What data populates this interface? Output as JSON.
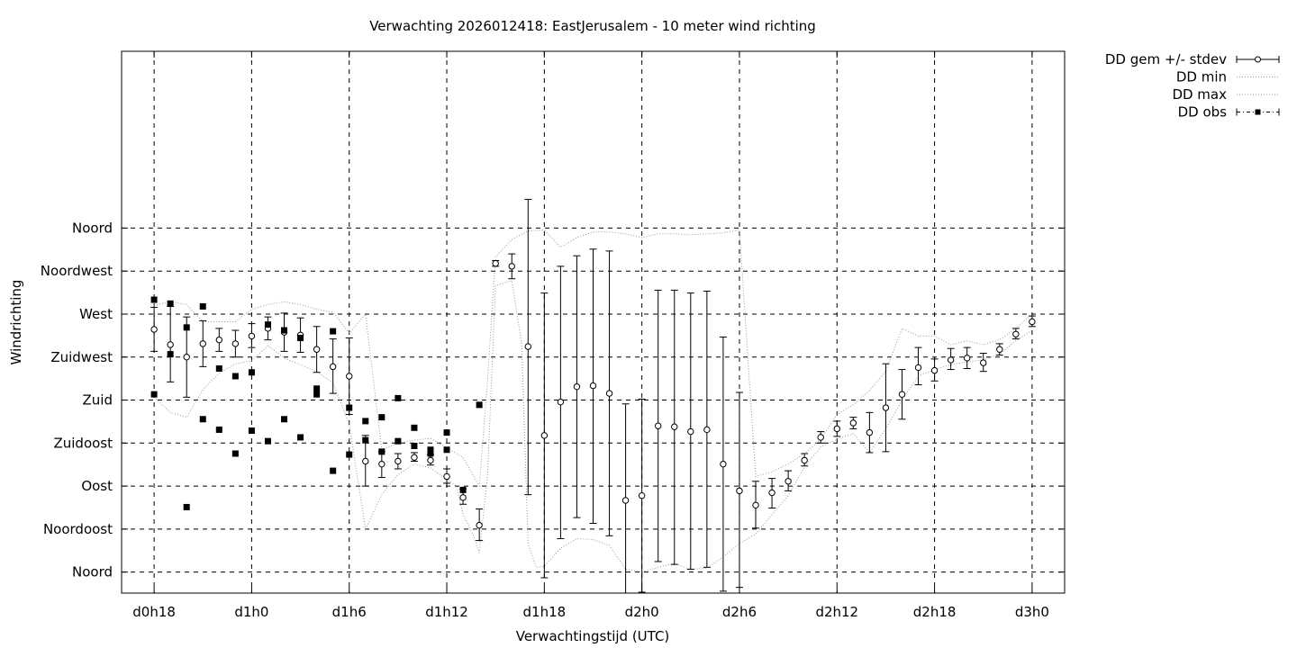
{
  "chart_data": {
    "type": "scatter",
    "title": "Verwachting 2026012418: EastJerusalem - 10 meter wind richting",
    "xlabel": "Verwachtingstijd (UTC)",
    "ylabel": "Windrichting",
    "xlim": [
      -2,
      56
    ],
    "ylim": [
      -22,
      545
    ],
    "x_unit": "hours since d0h18",
    "grid": true,
    "legend_position": "outside-top-right",
    "x_ticks": [
      {
        "x": 0,
        "label": "d0h18"
      },
      {
        "x": 6,
        "label": "d1h0"
      },
      {
        "x": 12,
        "label": "d1h6"
      },
      {
        "x": 18,
        "label": "d1h12"
      },
      {
        "x": 24,
        "label": "d1h18"
      },
      {
        "x": 30,
        "label": "d2h0"
      },
      {
        "x": 36,
        "label": "d2h6"
      },
      {
        "x": 42,
        "label": "d2h12"
      },
      {
        "x": 48,
        "label": "d2h18"
      },
      {
        "x": 54,
        "label": "d3h0"
      }
    ],
    "y_ticks": [
      {
        "y": 0,
        "label": "Noord"
      },
      {
        "y": 45,
        "label": "Noordoost"
      },
      {
        "y": 90,
        "label": "Oost"
      },
      {
        "y": 135,
        "label": "Zuidoost"
      },
      {
        "y": 180,
        "label": "Zuid"
      },
      {
        "y": 225,
        "label": "Zuidwest"
      },
      {
        "y": 270,
        "label": "West"
      },
      {
        "y": 315,
        "label": "Noordwest"
      },
      {
        "y": 360,
        "label": "Noord"
      }
    ],
    "legend": [
      {
        "label": "DD gem +/- stdev",
        "style": "errorbar"
      },
      {
        "label": "DD min",
        "style": "dotted"
      },
      {
        "label": "DD max",
        "style": "dotted"
      },
      {
        "label": "DD obs",
        "style": "square"
      }
    ],
    "series": [
      {
        "name": "DD gem +/- stdev",
        "points": [
          {
            "x": 0,
            "y": 254,
            "ylow": 231,
            "yhigh": 277
          },
          {
            "x": 1,
            "y": 238,
            "ylow": 199,
            "yhigh": 278
          },
          {
            "x": 2,
            "y": 225,
            "ylow": 183,
            "yhigh": 267
          },
          {
            "x": 3,
            "y": 239,
            "ylow": 215,
            "yhigh": 263
          },
          {
            "x": 4,
            "y": 243,
            "ylow": 231,
            "yhigh": 255
          },
          {
            "x": 5,
            "y": 239,
            "ylow": 225,
            "yhigh": 253
          },
          {
            "x": 6,
            "y": 247,
            "ylow": 235,
            "yhigh": 260
          },
          {
            "x": 7,
            "y": 255,
            "ylow": 243,
            "yhigh": 267
          },
          {
            "x": 8,
            "y": 251,
            "ylow": 231,
            "yhigh": 271
          },
          {
            "x": 9,
            "y": 248,
            "ylow": 230,
            "yhigh": 266
          },
          {
            "x": 10,
            "y": 233,
            "ylow": 209,
            "yhigh": 257
          },
          {
            "x": 11,
            "y": 215,
            "ylow": 187,
            "yhigh": 244
          },
          {
            "x": 12,
            "y": 205,
            "ylow": 165,
            "yhigh": 245
          },
          {
            "x": 13,
            "y": 116,
            "ylow": 90,
            "yhigh": 143
          },
          {
            "x": 14,
            "y": 113,
            "ylow": 99,
            "yhigh": 126
          },
          {
            "x": 15,
            "y": 116,
            "ylow": 108,
            "yhigh": 124
          },
          {
            "x": 16,
            "y": 120,
            "ylow": 116,
            "yhigh": 125
          },
          {
            "x": 17,
            "y": 117,
            "ylow": 112,
            "yhigh": 123
          },
          {
            "x": 18,
            "y": 100,
            "ylow": 93,
            "yhigh": 108
          },
          {
            "x": 19,
            "y": 78,
            "ylow": 71,
            "yhigh": 87
          },
          {
            "x": 20,
            "y": 49,
            "ylow": 33,
            "yhigh": 66
          },
          {
            "x": 21,
            "y": 323,
            "ylow": 320,
            "yhigh": 326
          },
          {
            "x": 22,
            "y": 320,
            "ylow": 307,
            "yhigh": 333
          },
          {
            "x": 23,
            "y": 236,
            "ylow": 81,
            "yhigh": 390
          },
          {
            "x": 24,
            "y": 143,
            "ylow": -6,
            "yhigh": 292
          },
          {
            "x": 25,
            "y": 178,
            "ylow": 35,
            "yhigh": 320
          },
          {
            "x": 26,
            "y": 194,
            "ylow": 57,
            "yhigh": 331
          },
          {
            "x": 27,
            "y": 195,
            "ylow": 51,
            "yhigh": 338
          },
          {
            "x": 28,
            "y": 187,
            "ylow": 38,
            "yhigh": 336
          },
          {
            "x": 29,
            "y": 75,
            "ylow": -30,
            "yhigh": 176
          },
          {
            "x": 30,
            "y": 80,
            "ylow": -21,
            "yhigh": 181
          },
          {
            "x": 31,
            "y": 153,
            "ylow": 11,
            "yhigh": 295
          },
          {
            "x": 32,
            "y": 152,
            "ylow": 8,
            "yhigh": 295
          },
          {
            "x": 33,
            "y": 147,
            "ylow": 3,
            "yhigh": 292
          },
          {
            "x": 34,
            "y": 149,
            "ylow": 5,
            "yhigh": 294
          },
          {
            "x": 35,
            "y": 113,
            "ylow": -20,
            "yhigh": 246
          },
          {
            "x": 36,
            "y": 85,
            "ylow": -16,
            "yhigh": 188
          },
          {
            "x": 37,
            "y": 70,
            "ylow": 46,
            "yhigh": 95
          },
          {
            "x": 38,
            "y": 83,
            "ylow": 67,
            "yhigh": 98
          },
          {
            "x": 39,
            "y": 95,
            "ylow": 85,
            "yhigh": 106
          },
          {
            "x": 40,
            "y": 117,
            "ylow": 111,
            "yhigh": 124
          },
          {
            "x": 41,
            "y": 141,
            "ylow": 135,
            "yhigh": 147
          },
          {
            "x": 42,
            "y": 150,
            "ylow": 142,
            "yhigh": 158
          },
          {
            "x": 43,
            "y": 156,
            "ylow": 150,
            "yhigh": 162
          },
          {
            "x": 44,
            "y": 146,
            "ylow": 125,
            "yhigh": 167
          },
          {
            "x": 45,
            "y": 172,
            "ylow": 126,
            "yhigh": 218
          },
          {
            "x": 46,
            "y": 186,
            "ylow": 160,
            "yhigh": 212
          },
          {
            "x": 47,
            "y": 214,
            "ylow": 196,
            "yhigh": 235
          },
          {
            "x": 48,
            "y": 211,
            "ylow": 200,
            "yhigh": 223
          },
          {
            "x": 49,
            "y": 222,
            "ylow": 212,
            "yhigh": 234
          },
          {
            "x": 50,
            "y": 224,
            "ylow": 213,
            "yhigh": 235
          },
          {
            "x": 51,
            "y": 219,
            "ylow": 210,
            "yhigh": 229
          },
          {
            "x": 52,
            "y": 233,
            "ylow": 227,
            "yhigh": 239
          },
          {
            "x": 53,
            "y": 249,
            "ylow": 244,
            "yhigh": 255
          },
          {
            "x": 54,
            "y": 262,
            "ylow": 257,
            "yhigh": 268
          }
        ]
      },
      {
        "name": "DD min",
        "style": "dotted",
        "points": [
          [
            0,
            183
          ],
          [
            1,
            167
          ],
          [
            2,
            162
          ],
          [
            3,
            191
          ],
          [
            4,
            208
          ],
          [
            5,
            218
          ],
          [
            6,
            221
          ],
          [
            7,
            237
          ],
          [
            8,
            224
          ],
          [
            9,
            217
          ],
          [
            10,
            210
          ],
          [
            11,
            198
          ],
          [
            12,
            155
          ],
          [
            13,
            45
          ],
          [
            14,
            81
          ],
          [
            15,
            102
          ],
          [
            16,
            113
          ],
          [
            17,
            109
          ],
          [
            18,
            97
          ],
          [
            18.6,
            90
          ],
          [
            19,
            60
          ],
          [
            19.6,
            40
          ],
          [
            20,
            20
          ],
          [
            20.5,
            100
          ],
          [
            21,
            300
          ],
          [
            22,
            305
          ],
          [
            22.6,
            240
          ],
          [
            23,
            30
          ],
          [
            23.5,
            5
          ],
          [
            24,
            6
          ],
          [
            25,
            25
          ],
          [
            26,
            35
          ],
          [
            27,
            34
          ],
          [
            28,
            28
          ],
          [
            29,
            3
          ],
          [
            30,
            0
          ],
          [
            31,
            5
          ],
          [
            32,
            9
          ],
          [
            33,
            3
          ],
          [
            34,
            4
          ],
          [
            35,
            16
          ],
          [
            36,
            30
          ],
          [
            37,
            40
          ],
          [
            38,
            60
          ],
          [
            39,
            80
          ],
          [
            40,
            110
          ],
          [
            41,
            131
          ],
          [
            42,
            139
          ],
          [
            43,
            145
          ],
          [
            44,
            125
          ],
          [
            45,
            150
          ],
          [
            46,
            180
          ],
          [
            47,
            205
          ],
          [
            48,
            212
          ],
          [
            49,
            217
          ],
          [
            50,
            220
          ],
          [
            51,
            222
          ],
          [
            52,
            228
          ],
          [
            53,
            242
          ],
          [
            54,
            253
          ]
        ]
      },
      {
        "name": "DD max",
        "style": "dotted",
        "points": [
          [
            0,
            279
          ],
          [
            1,
            283
          ],
          [
            2,
            280
          ],
          [
            3,
            262
          ],
          [
            4,
            262
          ],
          [
            5,
            262
          ],
          [
            6,
            275
          ],
          [
            7,
            280
          ],
          [
            8,
            283
          ],
          [
            9,
            280
          ],
          [
            10,
            275
          ],
          [
            11,
            272
          ],
          [
            12,
            250
          ],
          [
            13,
            270
          ],
          [
            14,
            128
          ],
          [
            15,
            135
          ],
          [
            16,
            138
          ],
          [
            17,
            140
          ],
          [
            18,
            130
          ],
          [
            19,
            120
          ],
          [
            20,
            90
          ],
          [
            20.5,
            200
          ],
          [
            21,
            330
          ],
          [
            22,
            348
          ],
          [
            23,
            357
          ],
          [
            24,
            358
          ],
          [
            25,
            340
          ],
          [
            26,
            350
          ],
          [
            27,
            356
          ],
          [
            28,
            356
          ],
          [
            29,
            354
          ],
          [
            30,
            350
          ],
          [
            31,
            354
          ],
          [
            32,
            354
          ],
          [
            33,
            353
          ],
          [
            34,
            354
          ],
          [
            35,
            355
          ],
          [
            36,
            358
          ],
          [
            37,
            100
          ],
          [
            38,
            105
          ],
          [
            39,
            113
          ],
          [
            40,
            124
          ],
          [
            41,
            139
          ],
          [
            42,
            165
          ],
          [
            43,
            175
          ],
          [
            44,
            190
          ],
          [
            45,
            210
          ],
          [
            46,
            255
          ],
          [
            47,
            247
          ],
          [
            48,
            247
          ],
          [
            49,
            238
          ],
          [
            50,
            242
          ],
          [
            51,
            238
          ],
          [
            52,
            243
          ],
          [
            53,
            255
          ],
          [
            54,
            270
          ]
        ]
      },
      {
        "name": "DD obs",
        "points": [
          [
            0,
            285
          ],
          [
            0,
            186
          ],
          [
            1,
            281
          ],
          [
            1,
            228
          ],
          [
            2,
            256
          ],
          [
            2,
            68
          ],
          [
            3,
            278
          ],
          [
            3,
            160
          ],
          [
            4,
            213
          ],
          [
            4,
            149
          ],
          [
            5,
            205
          ],
          [
            5,
            124
          ],
          [
            6,
            209
          ],
          [
            6,
            148
          ],
          [
            7,
            259
          ],
          [
            7,
            137
          ],
          [
            8,
            253
          ],
          [
            8,
            160
          ],
          [
            9,
            245
          ],
          [
            9,
            141
          ],
          [
            10,
            192
          ],
          [
            10,
            186
          ],
          [
            11,
            252
          ],
          [
            11,
            106
          ],
          [
            12,
            172
          ],
          [
            12,
            123
          ],
          [
            13,
            158
          ],
          [
            13,
            138
          ],
          [
            14,
            162
          ],
          [
            14,
            126
          ],
          [
            15,
            182
          ],
          [
            15,
            137
          ],
          [
            16,
            151
          ],
          [
            16,
            132
          ],
          [
            17,
            128
          ],
          [
            17,
            124
          ],
          [
            18,
            146
          ],
          [
            18,
            128
          ],
          [
            19,
            86
          ],
          [
            20,
            175
          ]
        ]
      }
    ]
  }
}
